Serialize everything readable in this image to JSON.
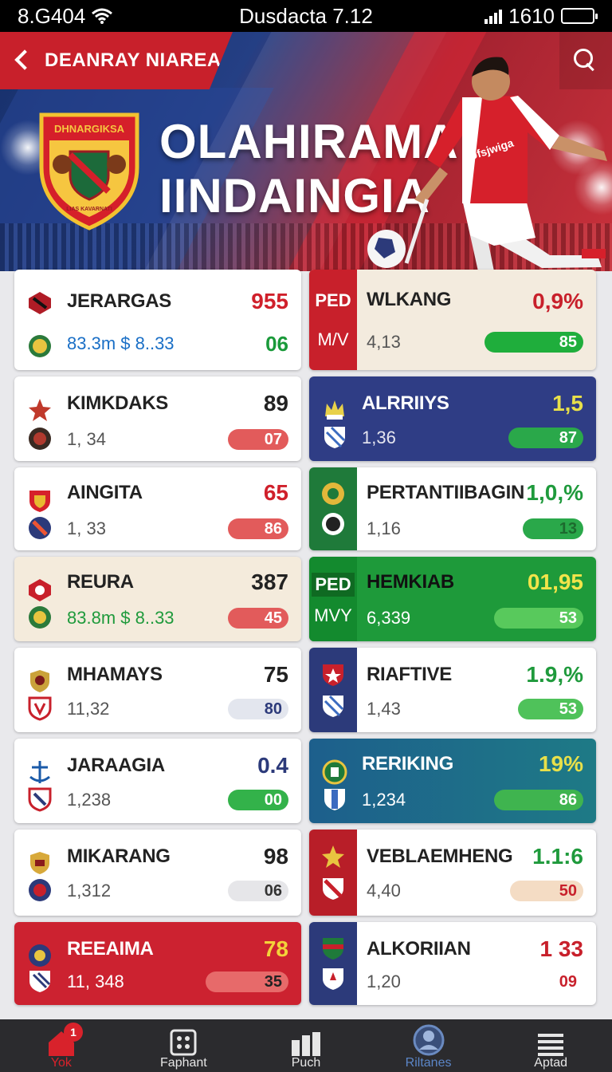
{
  "status_bar": {
    "left": "8.G404",
    "center": "Dusdacta 7.12",
    "right": "1610"
  },
  "header": {
    "title": "DEANRAY NIAREA"
  },
  "hero": {
    "title_line1": "OLAHIRAMA",
    "title_line2": "IINDAINGIA",
    "crest_text": "DHNARGIKSA",
    "crest_bottom": "LIAS KAVARNATI",
    "jersey_text": "Ufsjwiga"
  },
  "left_cards": [
    {
      "name": "JERARGAS",
      "value": "955",
      "sub": "83.3m $ 8..33",
      "pill": "06",
      "pill_style": "plain"
    },
    {
      "name": "KIMKDAKS",
      "value": "89",
      "sub": "1, 34",
      "pill": "07"
    },
    {
      "name": "AINGITA",
      "value": "65",
      "sub": "1, 33",
      "pill": "86"
    },
    {
      "name": "REURA",
      "value": "387",
      "sub": "83.8m $ 8..33",
      "pill": "45"
    },
    {
      "name": "MHAMAYS",
      "value": "75",
      "sub": "11,32",
      "pill": "80"
    },
    {
      "name": "JARAAGIA",
      "value": "0.4",
      "sub": "1,238",
      "pill": "00"
    },
    {
      "name": "MIKARANG",
      "value": "98",
      "sub": "1,312",
      "pill": "06"
    },
    {
      "name": "REEAIMA",
      "value": "78",
      "sub": "11, 348",
      "pill": "35"
    }
  ],
  "right_cards": [
    {
      "name": "WLKANG",
      "value": "0,9%",
      "sub": "4,13",
      "pill": "85",
      "tag1": "PED",
      "tag2": "M/V"
    },
    {
      "name": "ALRRIIYS",
      "value": "1,5",
      "sub": "1,36",
      "pill": "87"
    },
    {
      "name": "PERTANTIIBAGIN",
      "value": "1,0,%",
      "sub": "1,16",
      "pill": "13"
    },
    {
      "name": "HEMKIAB",
      "value": "01,95",
      "sub": "6,339",
      "pill": "53",
      "tag1": "PED",
      "tag2": "MVY"
    },
    {
      "name": "RIAFTIVE",
      "value": "1.9,%",
      "sub": "1,43",
      "pill": "53"
    },
    {
      "name": "RERIKING",
      "value": "19%",
      "sub": "1,234",
      "pill": "86"
    },
    {
      "name": "VEBLAEMHENG",
      "value": "1.1:6",
      "sub": "4,40",
      "pill": "50"
    },
    {
      "name": "ALKORIIAN",
      "value": "1 33",
      "sub": "1,20",
      "pill": "09"
    }
  ],
  "nav": {
    "items": [
      {
        "label": "Yok",
        "icon": "home-icon",
        "badge": "1"
      },
      {
        "label": "Faphant",
        "icon": "grid-icon"
      },
      {
        "label": "Puch",
        "icon": "stats-icon"
      },
      {
        "label": "Riltanes",
        "icon": "profile-icon"
      },
      {
        "label": "Aptad",
        "icon": "menu-icon"
      }
    ]
  },
  "colors": {
    "brand_red": "#c8202b",
    "navy": "#2c3a7a",
    "green": "#1f9a3c",
    "teal": "#1b6b8c"
  }
}
